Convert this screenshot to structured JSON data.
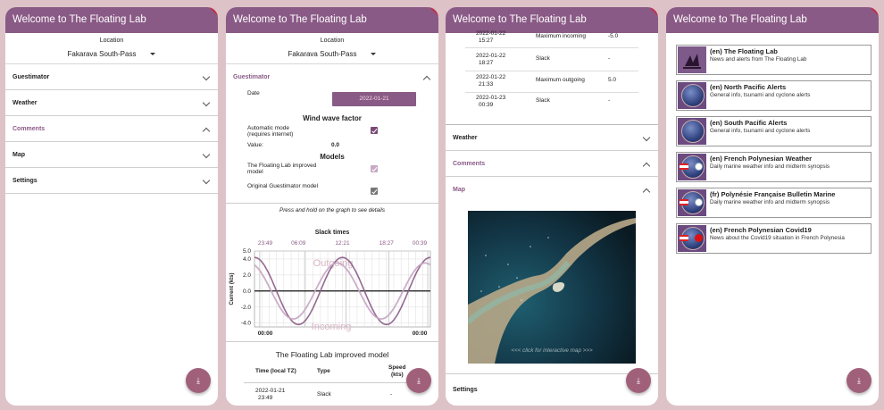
{
  "app_title": "Welcome to The Floating Lab",
  "location": {
    "label": "Location",
    "value": "Fakarava South-Pass"
  },
  "sections": {
    "guestimator": "Guestimator",
    "weather": "Weather",
    "comments": "Comments",
    "map": "Map",
    "settings": "Settings"
  },
  "guestimator": {
    "date_label": "Date",
    "date_value": "2022-01-21",
    "wind_wave_title": "Wind wave factor",
    "auto_mode_label_1": "Automatic mode",
    "auto_mode_label_2": "(requires internet)",
    "value_label": "Value:",
    "value": "0.0",
    "models_title": "Models",
    "model_improved_1": "The Floating Lab improved",
    "model_improved_2": "model",
    "model_original": "Original Guestimator model",
    "hint": "Press and hold on the graph to see details"
  },
  "chart_data": {
    "type": "line",
    "title": "Slack times",
    "ylabel": "Current (kts)",
    "top_ticks": [
      "23:49",
      "06:09",
      "12:21",
      "18:27",
      "00:39"
    ],
    "x_ticks": [
      "00:00",
      "00:00"
    ],
    "y_ticks": [
      "5.0",
      "4.0",
      "2.0",
      "0.0",
      "-2.0",
      "-4.0"
    ],
    "ylim": [
      -4.5,
      5
    ],
    "annotations": {
      "upper": "Outgoing",
      "lower": "Incoming"
    },
    "series": [
      {
        "values_desc": "improved model curve",
        "points": [
          [
            0,
            4
          ],
          [
            0.125,
            0
          ],
          [
            0.25,
            -4
          ],
          [
            0.375,
            0
          ],
          [
            0.5,
            4
          ],
          [
            0.625,
            0
          ],
          [
            0.75,
            -4
          ],
          [
            0.875,
            0
          ],
          [
            1,
            4
          ]
        ]
      },
      {
        "values_desc": "original model curve",
        "points": [
          [
            0,
            3.2
          ],
          [
            0.125,
            0.5
          ],
          [
            0.25,
            -3.4
          ],
          [
            0.375,
            -0.5
          ],
          [
            0.5,
            3.4
          ],
          [
            0.625,
            0.5
          ],
          [
            0.75,
            -3.4
          ],
          [
            0.875,
            -0.5
          ],
          [
            1,
            3.2
          ]
        ]
      }
    ],
    "grid": true
  },
  "improved_table": {
    "title": "The Floating Lab improved model",
    "headers": {
      "time": "Time (local TZ)",
      "type": "Type",
      "speed_1": "Speed",
      "speed_2": "(kts)"
    },
    "first_row": {
      "date": "2022-01-21",
      "time": "23:49",
      "type": "Slack",
      "speed": "-"
    }
  },
  "screen3_table": [
    {
      "date": "2022-01-22",
      "time": "15:27",
      "type": "Maximum incoming",
      "speed": "-5.0"
    },
    {
      "date": "2022-01-22",
      "time": "18:27",
      "type": "Slack",
      "speed": "-"
    },
    {
      "date": "2022-01-22",
      "time": "21:33",
      "type": "Maximum outgoing",
      "speed": "5.0"
    },
    {
      "date": "2022-01-23",
      "time": "00:39",
      "type": "Slack",
      "speed": "-"
    }
  ],
  "map": {
    "caption": "<<< click for interactive map >>>"
  },
  "feeds": [
    {
      "title": "(en) The Floating Lab",
      "desc": "News and alerts from The Floating Lab"
    },
    {
      "title": "(en) North Pacific Alerts",
      "desc": "General info, tsunami and cyclone alerts"
    },
    {
      "title": "(en) South Pacific Alerts",
      "desc": "General info, tsunami and cyclone alerts"
    },
    {
      "title": "(en) French Polynesian Weather",
      "desc": "Daily marine weather info and midterm synopsis"
    },
    {
      "title": "(fr) Polynésie Française Bulletin Marine",
      "desc": "Daily marine weather info and midterm synopsis"
    },
    {
      "title": "(en) French Polynesian Covid19",
      "desc": "News about the Covid19 situation in French Polynesia"
    }
  ],
  "colors": {
    "primary": "#8a5a86",
    "fab": "#a0607a",
    "background": "#ddc3c7"
  },
  "icons": {
    "fab": "download-icon",
    "expand": "chevron-down-icon",
    "collapse": "chevron-up-icon"
  }
}
